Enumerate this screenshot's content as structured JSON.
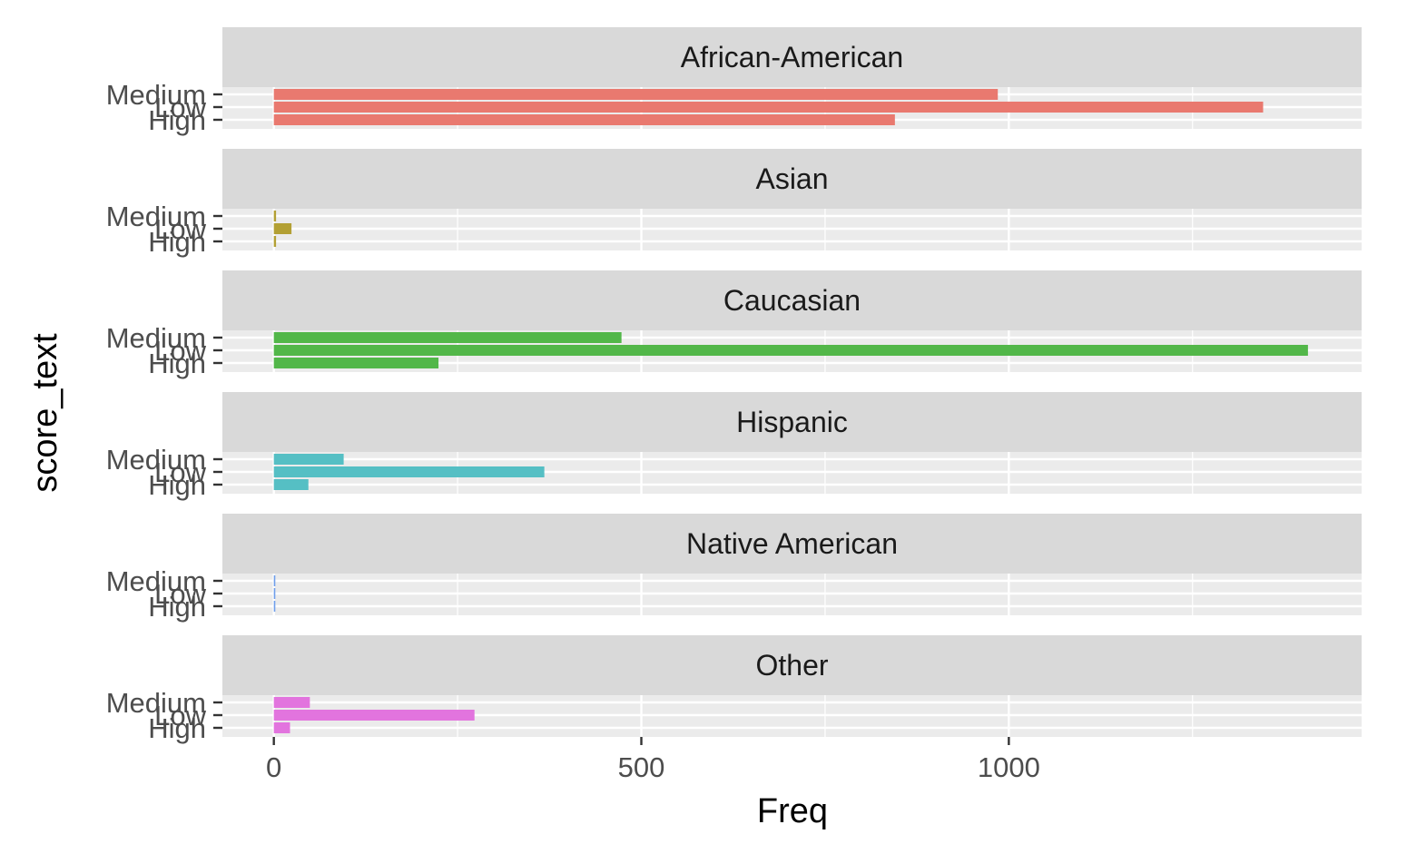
{
  "chart_data": {
    "type": "bar",
    "orientation": "horizontal",
    "xlabel": "Freq",
    "ylabel": "score_text",
    "xlim": [
      -70,
      1480
    ],
    "xticks": [
      0,
      500,
      1000
    ],
    "xminor": [
      250,
      750,
      1250
    ],
    "categories": [
      "Medium",
      "Low",
      "High"
    ],
    "panels": [
      {
        "name": "African-American",
        "color": "#E9796F",
        "values": {
          "Medium": 985,
          "Low": 1346,
          "High": 845
        }
      },
      {
        "name": "Asian",
        "color": "#B3A034",
        "values": {
          "Medium": 3,
          "Low": 24,
          "High": 3
        }
      },
      {
        "name": "Caucasian",
        "color": "#52B749",
        "values": {
          "Medium": 473,
          "Low": 1407,
          "High": 224
        }
      },
      {
        "name": "Hispanic",
        "color": "#55BFC4",
        "values": {
          "Medium": 95,
          "Low": 368,
          "High": 47
        }
      },
      {
        "name": "Native American",
        "color": "#6F9EEB",
        "values": {
          "Medium": 2,
          "Low": 2,
          "High": 2
        }
      },
      {
        "name": "Other",
        "color": "#E274DE",
        "values": {
          "Medium": 49,
          "Low": 273,
          "High": 22
        }
      }
    ]
  }
}
